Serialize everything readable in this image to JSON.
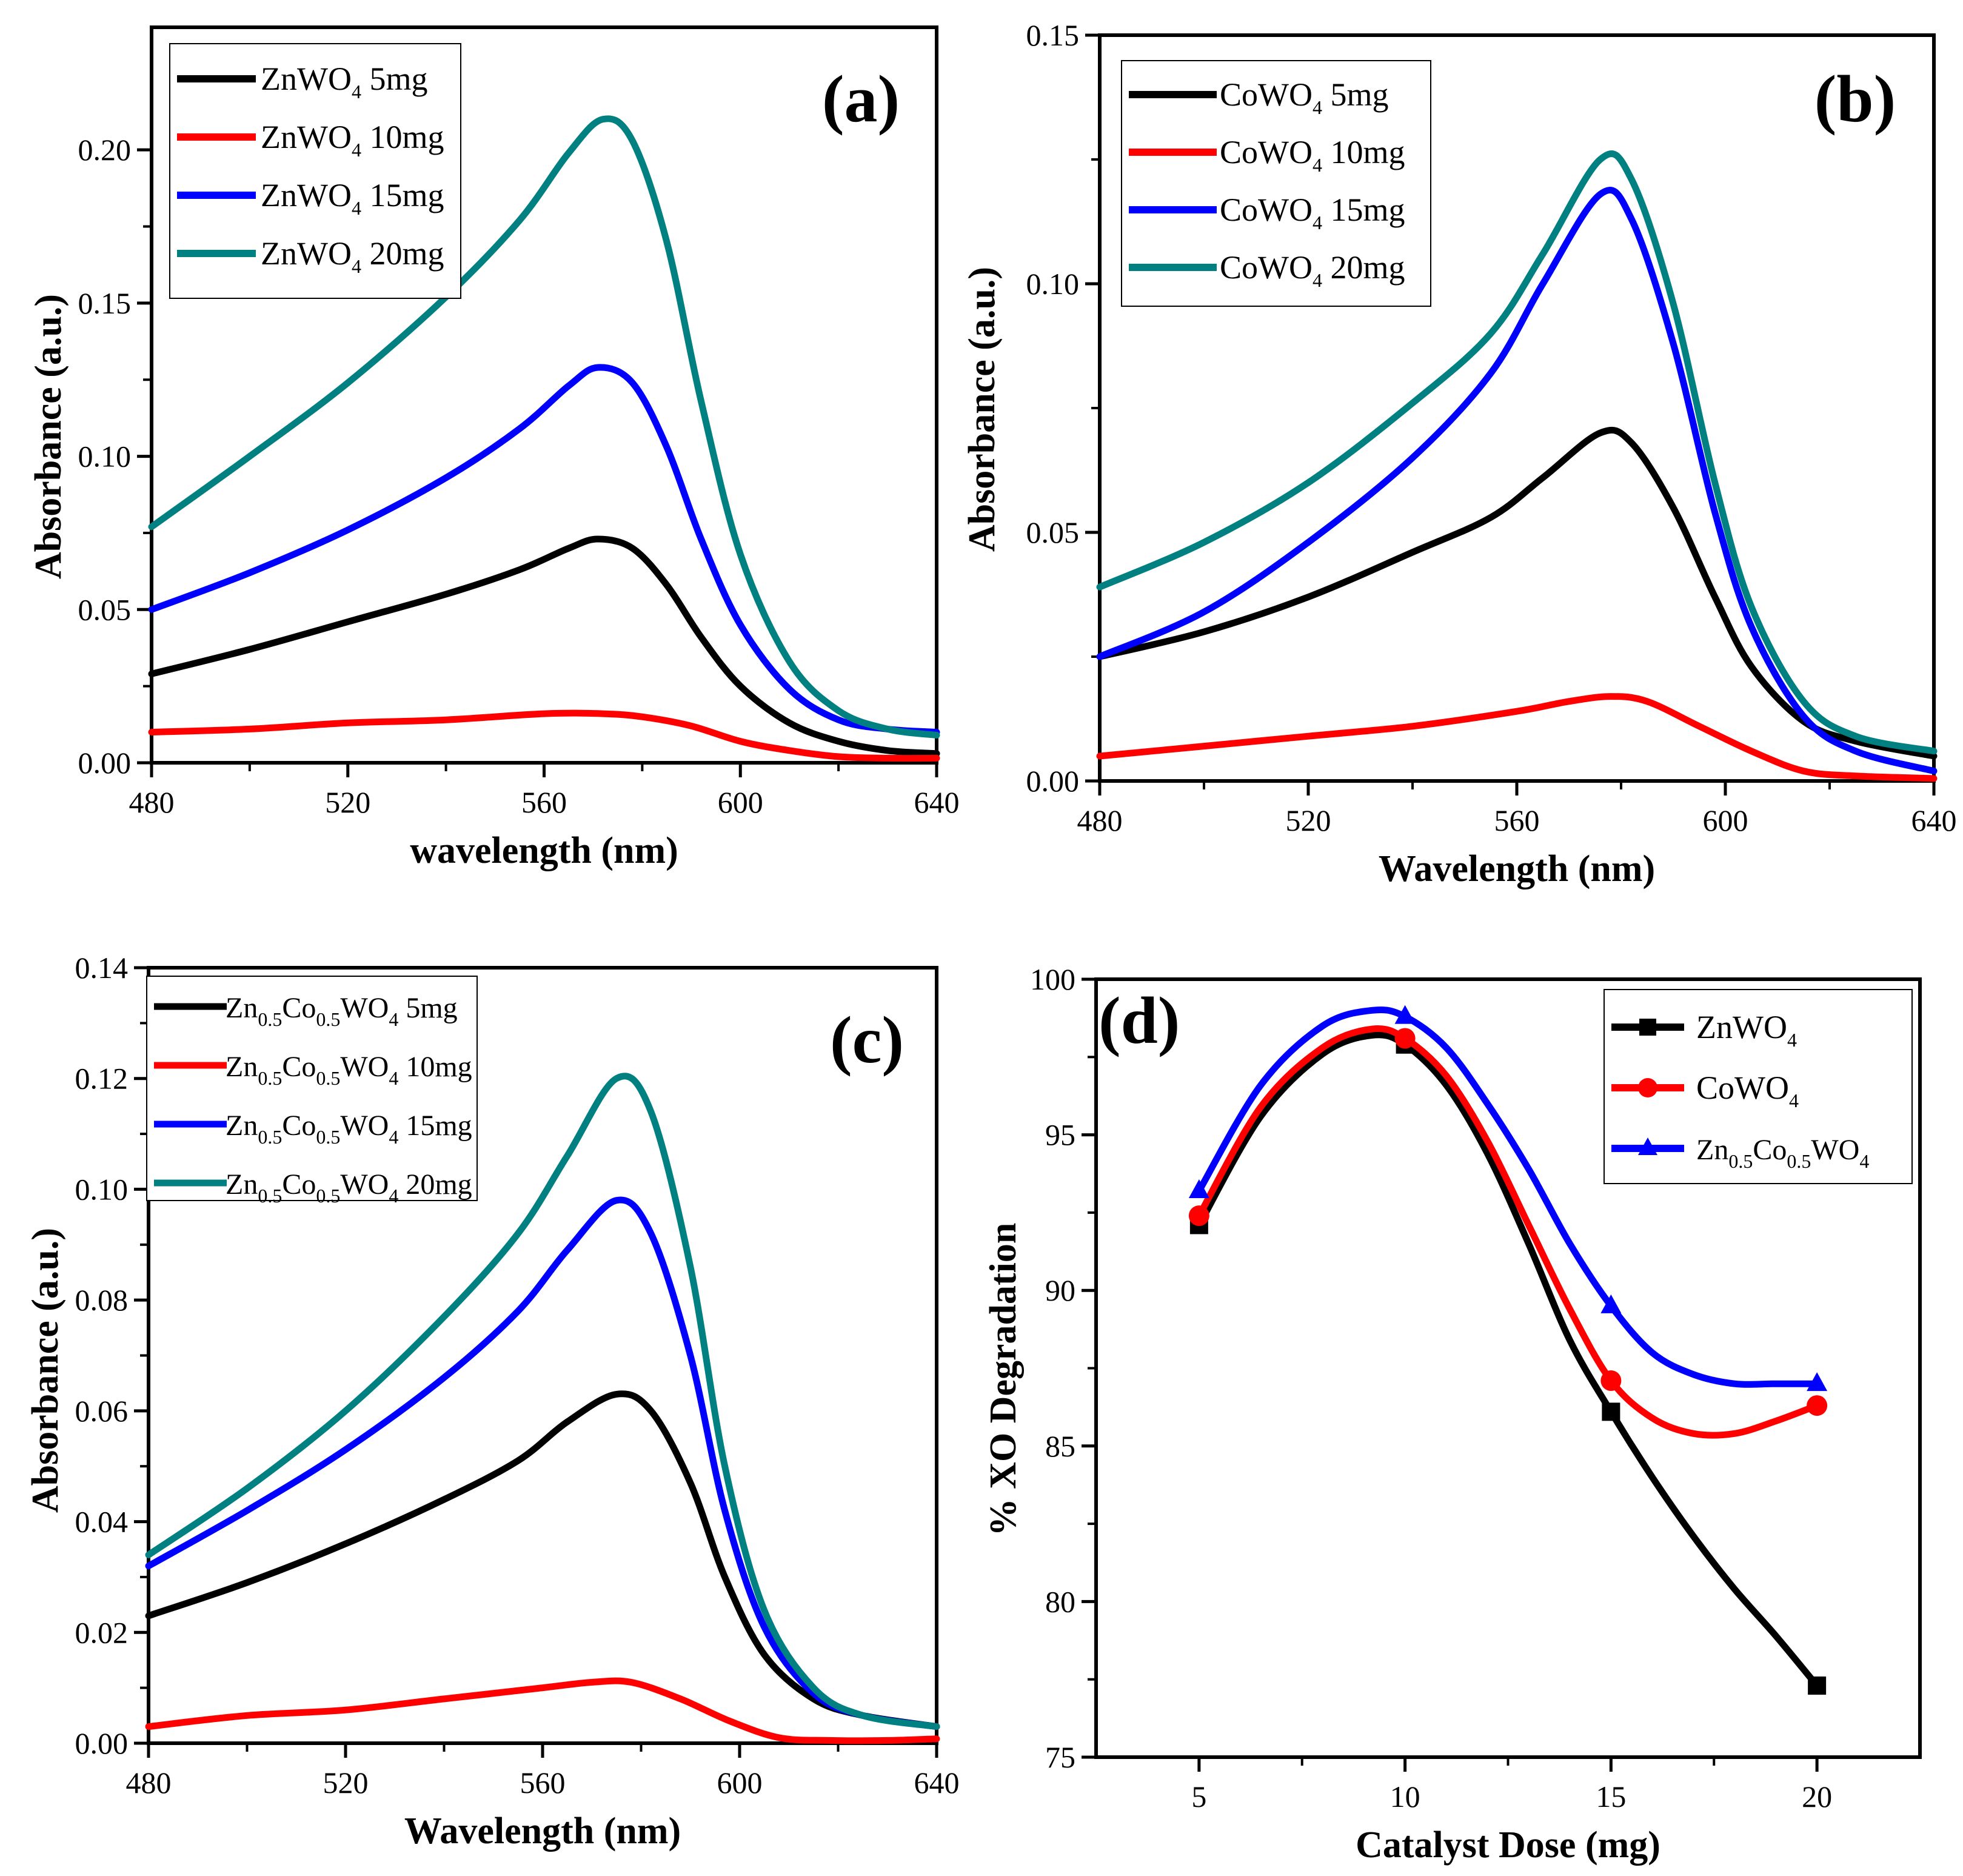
{
  "chart_data": [
    {
      "type": "line",
      "panel_label": "(a)",
      "xlabel": "wavelength (nm)",
      "ylabel": "Absorbance (a.u.)",
      "xlim": [
        480,
        640
      ],
      "ylim": [
        0,
        0.24
      ],
      "xticks": [
        480,
        520,
        560,
        600,
        640
      ],
      "xtick_labels": [
        "480",
        "520",
        "560",
        "600",
        "640"
      ],
      "yticks": [
        0,
        0.05,
        0.1,
        0.15,
        0.2
      ],
      "ytick_labels": [
        "0.00",
        "0.05",
        "0.10",
        "0.15",
        "0.20"
      ],
      "legend_position": "top-left",
      "series": [
        {
          "name": "ZnWO4 5mg",
          "legend": {
            "pre": "ZnWO",
            "sub": "4",
            "post": " 5mg"
          },
          "color": "#000000",
          "x": [
            480,
            500,
            520,
            540,
            555,
            565,
            571,
            578,
            585,
            592,
            600,
            610,
            620,
            630,
            640
          ],
          "y": [
            0.029,
            0.037,
            0.046,
            0.055,
            0.063,
            0.07,
            0.073,
            0.07,
            0.058,
            0.041,
            0.025,
            0.013,
            0.007,
            0.004,
            0.003
          ]
        },
        {
          "name": "ZnWO4 10mg",
          "legend": {
            "pre": "ZnWO",
            "sub": "4",
            "post": " 10mg"
          },
          "color": "#ff0000",
          "x": [
            480,
            500,
            520,
            540,
            560,
            572,
            580,
            590,
            600,
            610,
            620,
            630,
            640
          ],
          "y": [
            0.01,
            0.011,
            0.013,
            0.014,
            0.016,
            0.016,
            0.015,
            0.012,
            0.007,
            0.004,
            0.002,
            0.0015,
            0.0015
          ]
        },
        {
          "name": "ZnWO4 15mg",
          "legend": {
            "pre": "ZnWO",
            "sub": "4",
            "post": " 15mg"
          },
          "color": "#0000ff",
          "x": [
            480,
            500,
            520,
            540,
            555,
            565,
            571,
            578,
            585,
            592,
            600,
            610,
            620,
            630,
            640
          ],
          "y": [
            0.05,
            0.062,
            0.076,
            0.093,
            0.109,
            0.123,
            0.129,
            0.124,
            0.103,
            0.073,
            0.045,
            0.024,
            0.014,
            0.011,
            0.01
          ]
        },
        {
          "name": "ZnWO4 20mg",
          "legend": {
            "pre": "ZnWO",
            "sub": "4",
            "post": " 20mg"
          },
          "color": "#008080",
          "x": [
            480,
            500,
            520,
            540,
            555,
            565,
            572,
            578,
            585,
            592,
            600,
            610,
            620,
            630,
            640
          ],
          "y": [
            0.077,
            0.1,
            0.124,
            0.152,
            0.177,
            0.199,
            0.21,
            0.203,
            0.17,
            0.118,
            0.068,
            0.033,
            0.017,
            0.011,
            0.009
          ]
        }
      ]
    },
    {
      "type": "line",
      "panel_label": "(b)",
      "xlabel": "Wavelength (nm)",
      "ylabel": "Absorbance (a.u.)",
      "xlim": [
        480,
        640
      ],
      "ylim": [
        0,
        0.15
      ],
      "xticks": [
        480,
        520,
        560,
        600,
        640
      ],
      "xtick_labels": [
        "480",
        "520",
        "560",
        "600",
        "640"
      ],
      "yticks": [
        0,
        0.05,
        0.1,
        0.15
      ],
      "ytick_labels": [
        "0.00",
        "0.05",
        "0.10",
        "0.15"
      ],
      "legend_position": "top-left",
      "series": [
        {
          "name": "CoWO4 5mg",
          "legend": {
            "pre": "CoWO",
            "sub": "4",
            "post": " 5mg"
          },
          "color": "#000000",
          "x": [
            480,
            500,
            520,
            540,
            555,
            565,
            576,
            582,
            590,
            598,
            605,
            615,
            625,
            640
          ],
          "y": [
            0.025,
            0.03,
            0.037,
            0.046,
            0.053,
            0.061,
            0.07,
            0.068,
            0.055,
            0.037,
            0.023,
            0.012,
            0.008,
            0.005
          ]
        },
        {
          "name": "CoWO4 10mg",
          "legend": {
            "pre": "CoWO",
            "sub": "4",
            "post": " 10mg"
          },
          "color": "#ff0000",
          "x": [
            480,
            500,
            520,
            540,
            560,
            570,
            578,
            585,
            595,
            605,
            615,
            625,
            640
          ],
          "y": [
            0.005,
            0.007,
            0.009,
            0.011,
            0.014,
            0.016,
            0.017,
            0.016,
            0.011,
            0.006,
            0.002,
            0.001,
            0.0005
          ]
        },
        {
          "name": "CoWO4 15mg",
          "legend": {
            "pre": "CoWO",
            "sub": "4",
            "post": " 15mg"
          },
          "color": "#0000ff",
          "x": [
            480,
            500,
            520,
            540,
            555,
            565,
            576,
            582,
            590,
            598,
            605,
            615,
            625,
            640
          ],
          "y": [
            0.025,
            0.034,
            0.048,
            0.065,
            0.082,
            0.1,
            0.118,
            0.113,
            0.088,
            0.054,
            0.031,
            0.013,
            0.006,
            0.002
          ]
        },
        {
          "name": "CoWO4 20mg",
          "legend": {
            "pre": "CoWO",
            "sub": "4",
            "post": " 20mg"
          },
          "color": "#008080",
          "x": [
            480,
            500,
            520,
            540,
            555,
            565,
            576,
            582,
            590,
            598,
            605,
            615,
            625,
            640
          ],
          "y": [
            0.039,
            0.048,
            0.06,
            0.076,
            0.09,
            0.106,
            0.125,
            0.121,
            0.096,
            0.06,
            0.035,
            0.016,
            0.009,
            0.006
          ]
        }
      ]
    },
    {
      "type": "line",
      "panel_label": "(c)",
      "xlabel": "Wavelength (nm)",
      "ylabel": "Absorbance (a.u.)",
      "xlim": [
        480,
        640
      ],
      "ylim": [
        0,
        0.14
      ],
      "xticks": [
        480,
        520,
        560,
        600,
        640
      ],
      "xtick_labels": [
        "480",
        "520",
        "560",
        "600",
        "640"
      ],
      "yticks": [
        0,
        0.02,
        0.04,
        0.06,
        0.08,
        0.1,
        0.12,
        0.14
      ],
      "ytick_labels": [
        "0.00",
        "0.02",
        "0.04",
        "0.06",
        "0.08",
        "0.10",
        "0.12",
        "0.14"
      ],
      "legend_position": "top-left",
      "series": [
        {
          "name": "Zn0.5Co0.5WO4 5mg",
          "legend": {
            "parts": [
              [
                "Zn",
                ""
              ],
              [
                "0.5",
                "sub"
              ],
              [
                "Co",
                ""
              ],
              [
                "0.5",
                "sub"
              ],
              [
                "WO",
                ""
              ],
              [
                "4",
                "sub"
              ],
              [
                " 5mg",
                ""
              ]
            ]
          },
          "color": "#000000",
          "x": [
            480,
            500,
            520,
            540,
            555,
            565,
            575,
            582,
            590,
            597,
            605,
            615,
            625,
            640
          ],
          "y": [
            0.023,
            0.029,
            0.036,
            0.044,
            0.051,
            0.058,
            0.063,
            0.06,
            0.047,
            0.03,
            0.016,
            0.008,
            0.005,
            0.003
          ]
        },
        {
          "name": "Zn0.5Co0.5WO4 10mg",
          "legend": {
            "parts": [
              [
                "Zn",
                ""
              ],
              [
                "0.5",
                "sub"
              ],
              [
                "Co",
                ""
              ],
              [
                "0.5",
                "sub"
              ],
              [
                "WO",
                ""
              ],
              [
                "4",
                "sub"
              ],
              [
                " 10mg",
                ""
              ]
            ]
          },
          "color": "#ff0000",
          "x": [
            480,
            500,
            520,
            540,
            560,
            570,
            578,
            588,
            598,
            608,
            618,
            630,
            640
          ],
          "y": [
            0.003,
            0.005,
            0.006,
            0.008,
            0.01,
            0.011,
            0.011,
            0.008,
            0.004,
            0.001,
            0.0005,
            0.0005,
            0.0008
          ]
        },
        {
          "name": "Zn0.5Co0.5WO4 15mg",
          "legend": {
            "parts": [
              [
                "Zn",
                ""
              ],
              [
                "0.5",
                "sub"
              ],
              [
                "Co",
                ""
              ],
              [
                "0.5",
                "sub"
              ],
              [
                "WO",
                ""
              ],
              [
                "4",
                "sub"
              ],
              [
                " 15mg",
                ""
              ]
            ]
          },
          "color": "#0000ff",
          "x": [
            480,
            500,
            520,
            540,
            555,
            565,
            575,
            582,
            590,
            597,
            605,
            615,
            625,
            640
          ],
          "y": [
            0.032,
            0.042,
            0.053,
            0.066,
            0.078,
            0.089,
            0.098,
            0.092,
            0.07,
            0.042,
            0.021,
            0.009,
            0.005,
            0.003
          ]
        },
        {
          "name": "Zn0.5Co0.5WO4 20mg",
          "legend": {
            "parts": [
              [
                "Zn",
                ""
              ],
              [
                "0.5",
                "sub"
              ],
              [
                "Co",
                ""
              ],
              [
                "0.5",
                "sub"
              ],
              [
                "WO",
                ""
              ],
              [
                "4",
                "sub"
              ],
              [
                " 20mg",
                ""
              ]
            ]
          },
          "color": "#008080",
          "x": [
            480,
            500,
            520,
            540,
            555,
            565,
            575,
            582,
            590,
            597,
            605,
            615,
            625,
            640
          ],
          "y": [
            0.034,
            0.046,
            0.06,
            0.077,
            0.092,
            0.106,
            0.12,
            0.114,
            0.086,
            0.05,
            0.024,
            0.01,
            0.005,
            0.003
          ]
        }
      ]
    },
    {
      "type": "line",
      "panel_label": "(d)",
      "xlabel": "Catalyst Dose (mg)",
      "ylabel": "% XO Degradation",
      "xlim": [
        2.5,
        22.5
      ],
      "ylim": [
        75,
        100
      ],
      "xticks": [
        5,
        10,
        15,
        20
      ],
      "xtick_labels": [
        "5",
        "10",
        "15",
        "20"
      ],
      "yticks": [
        75,
        80,
        85,
        90,
        95,
        100
      ],
      "ytick_labels": [
        "75",
        "80",
        "85",
        "90",
        "95",
        "100"
      ],
      "legend_position": "top-right",
      "series": [
        {
          "name": "ZnWO4",
          "legend": {
            "pre": "ZnWO",
            "sub": "4",
            "post": ""
          },
          "color": "#000000",
          "marker": "square",
          "x": [
            5,
            10,
            15,
            20
          ],
          "y": [
            92.1,
            97.9,
            86.1,
            77.3
          ],
          "curve_x": [
            5,
            6.5,
            8,
            9.2,
            10,
            11,
            12,
            13,
            14,
            15,
            16,
            17,
            18,
            19,
            20
          ],
          "curve_y": [
            92.1,
            95.6,
            97.6,
            98.2,
            97.9,
            96.6,
            94.4,
            91.5,
            88.4,
            86.1,
            84.0,
            82.1,
            80.4,
            78.9,
            77.3
          ]
        },
        {
          "name": "CoWO4",
          "legend": {
            "pre": "CoWO",
            "sub": "4",
            "post": ""
          },
          "color": "#ff0000",
          "marker": "circle",
          "x": [
            5,
            10,
            15,
            20
          ],
          "y": [
            92.4,
            98.1,
            87.1,
            86.3
          ],
          "curve_x": [
            5,
            6.5,
            8,
            9.2,
            10,
            11,
            12,
            13,
            14,
            15,
            16,
            17,
            18,
            19,
            20
          ],
          "curve_y": [
            92.4,
            95.9,
            97.8,
            98.4,
            98.1,
            96.9,
            94.8,
            92.1,
            89.4,
            87.1,
            85.9,
            85.4,
            85.4,
            85.8,
            86.3
          ]
        },
        {
          "name": "Zn0.5Co0.5WO4",
          "legend": {
            "parts": [
              [
                "Zn",
                ""
              ],
              [
                "0.5",
                "sub"
              ],
              [
                "Co",
                ""
              ],
              [
                "0.5",
                "sub"
              ],
              [
                "WO",
                ""
              ],
              [
                "4",
                "sub"
              ]
            ]
          },
          "color": "#0000ff",
          "marker": "triangle",
          "x": [
            5,
            10,
            15,
            20
          ],
          "y": [
            93.2,
            98.8,
            89.5,
            87.0
          ],
          "curve_x": [
            5,
            6.5,
            8,
            9.2,
            10,
            11,
            12,
            13,
            14,
            15,
            16,
            17,
            18,
            19,
            20
          ],
          "curve_y": [
            93.2,
            96.6,
            98.5,
            99.0,
            98.8,
            97.8,
            96.0,
            93.9,
            91.5,
            89.5,
            88.0,
            87.3,
            87.0,
            87.0,
            87.0
          ]
        }
      ]
    }
  ]
}
